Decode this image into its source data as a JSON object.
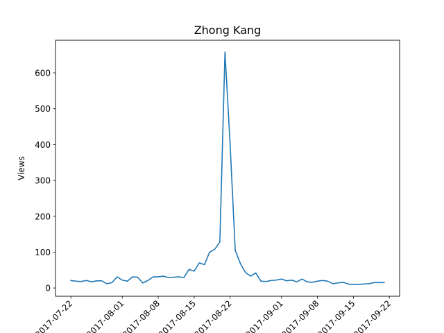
{
  "chart_data": {
    "type": "line",
    "title": "Zhong Kang",
    "xlabel": "",
    "ylabel": "Views",
    "x_start": "2017-07-22",
    "x_end": "2017-09-21",
    "x": [
      "2017-07-22",
      "2017-07-23",
      "2017-07-24",
      "2017-07-25",
      "2017-07-26",
      "2017-07-27",
      "2017-07-28",
      "2017-07-29",
      "2017-07-30",
      "2017-07-31",
      "2017-08-01",
      "2017-08-02",
      "2017-08-03",
      "2017-08-04",
      "2017-08-05",
      "2017-08-06",
      "2017-08-07",
      "2017-08-08",
      "2017-08-09",
      "2017-08-10",
      "2017-08-11",
      "2017-08-12",
      "2017-08-13",
      "2017-08-14",
      "2017-08-15",
      "2017-08-16",
      "2017-08-17",
      "2017-08-18",
      "2017-08-19",
      "2017-08-20",
      "2017-08-21",
      "2017-08-22",
      "2017-08-23",
      "2017-08-24",
      "2017-08-25",
      "2017-08-26",
      "2017-08-27",
      "2017-08-28",
      "2017-08-29",
      "2017-08-30",
      "2017-08-31",
      "2017-09-01",
      "2017-09-02",
      "2017-09-03",
      "2017-09-04",
      "2017-09-05",
      "2017-09-06",
      "2017-09-07",
      "2017-09-08",
      "2017-09-09",
      "2017-09-10",
      "2017-09-11",
      "2017-09-12",
      "2017-09-13",
      "2017-09-14",
      "2017-09-15",
      "2017-09-16",
      "2017-09-17",
      "2017-09-18",
      "2017-09-19",
      "2017-09-20",
      "2017-09-21"
    ],
    "values": [
      21,
      19,
      18,
      21,
      17,
      20,
      20,
      12,
      15,
      31,
      22,
      19,
      31,
      30,
      14,
      21,
      31,
      31,
      33,
      29,
      30,
      31,
      29,
      52,
      47,
      70,
      65,
      100,
      108,
      128,
      658,
      400,
      105,
      68,
      43,
      33,
      42,
      19,
      18,
      21,
      22,
      25,
      20,
      22,
      17,
      25,
      17,
      16,
      19,
      21,
      19,
      12,
      14,
      16,
      11,
      10,
      10,
      11,
      12,
      15,
      15,
      15
    ],
    "x_ticks": [
      "2017-07-22",
      "2017-08-01",
      "2017-08-08",
      "2017-08-15",
      "2017-08-22",
      "2017-09-01",
      "2017-09-08",
      "2017-09-15",
      "2017-09-22"
    ],
    "y_ticks": [
      0,
      100,
      200,
      300,
      400,
      500,
      600
    ],
    "ylim": [
      -23,
      691
    ],
    "xlim": [
      "2017-07-19",
      "2017-09-24"
    ],
    "grid": false,
    "line_color": "#1f77b4"
  }
}
